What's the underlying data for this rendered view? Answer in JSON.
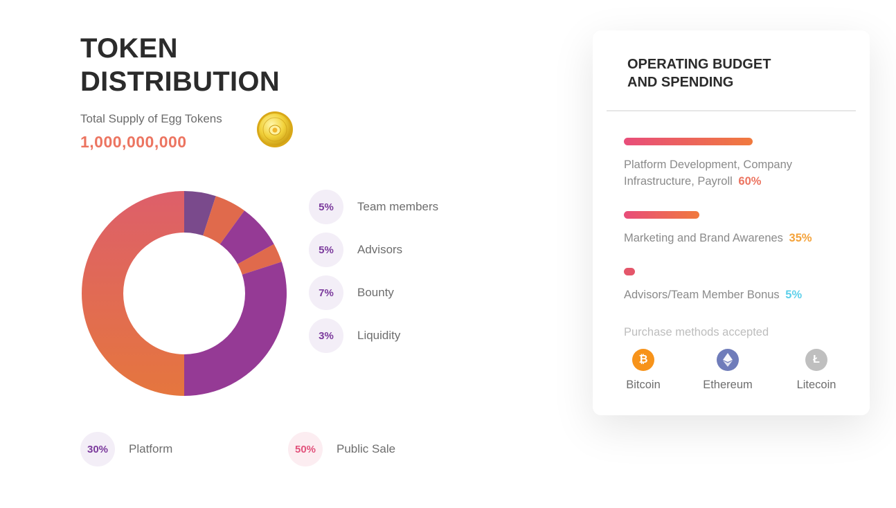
{
  "header": {
    "title_line1": "TOKEN",
    "title_line2": "DISTRIBUTION",
    "supply_label": "Total Supply of Egg Tokens",
    "supply_value": "1,000,000,000"
  },
  "chart_data": {
    "type": "pie",
    "categories": [
      "Team members",
      "Advisors",
      "Bounty",
      "Liquidity",
      "Platform",
      "Public Sale"
    ],
    "values": [
      5,
      5,
      7,
      3,
      30,
      50
    ],
    "colors": [
      "#7a4a8c",
      "#e06a4c",
      "#953a95",
      "#e06a4c",
      "#953a95",
      "#e0684c"
    ]
  },
  "legend": {
    "team": {
      "pct": "5%",
      "label": "Team members"
    },
    "advisors": {
      "pct": "5%",
      "label": "Advisors"
    },
    "bounty": {
      "pct": "7%",
      "label": "Bounty"
    },
    "liquidity": {
      "pct": "3%",
      "label": "Liquidity"
    },
    "platform": {
      "pct": "30%",
      "label": "Platform"
    },
    "public_sale": {
      "pct": "50%",
      "label": "Public Sale"
    }
  },
  "budget": {
    "title_line1": "OPERATING BUDGET",
    "title_line2": "AND SPENDING",
    "items": [
      {
        "line1": "Platform Development, Company",
        "line2": "Infrastructure, Payroll",
        "pct": "60%",
        "fraction": 0.6
      },
      {
        "label": "Marketing and Brand Awarenes",
        "pct": "35%",
        "fraction": 0.35
      },
      {
        "label": "Advisors/Team Member Bonus",
        "pct": "5%",
        "fraction": 0.05
      }
    ],
    "purchase_label": "Purchase methods accepted",
    "methods": [
      {
        "name": "Bitcoin",
        "icon": "bitcoin-icon",
        "color": "#f7931a"
      },
      {
        "name": "Ethereum",
        "icon": "ethereum-icon",
        "color": "#6f7cba"
      },
      {
        "name": "Litecoin",
        "icon": "litecoin-icon",
        "color": "#bfbfbf"
      }
    ]
  }
}
